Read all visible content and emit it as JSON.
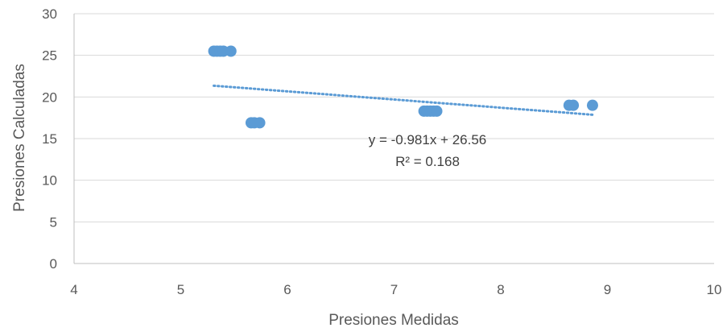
{
  "chart_data": {
    "type": "scatter",
    "xlabel": "Presiones Medidas",
    "ylabel": "Presiones Calculadas",
    "xlim": [
      4,
      10
    ],
    "ylim": [
      0,
      30
    ],
    "xticks": [
      4,
      5,
      6,
      7,
      8,
      9,
      10
    ],
    "yticks": [
      0,
      5,
      10,
      15,
      20,
      25,
      30
    ],
    "grid": "horizontal",
    "series": [
      {
        "color": "#5b9bd5",
        "points": [
          {
            "x": 5.31,
            "y": 25.5
          },
          {
            "x": 5.34,
            "y": 25.5
          },
          {
            "x": 5.37,
            "y": 25.5
          },
          {
            "x": 5.4,
            "y": 25.5
          },
          {
            "x": 5.47,
            "y": 25.5
          },
          {
            "x": 5.66,
            "y": 16.9
          },
          {
            "x": 5.69,
            "y": 16.9
          },
          {
            "x": 5.74,
            "y": 16.9
          },
          {
            "x": 7.28,
            "y": 18.3
          },
          {
            "x": 7.31,
            "y": 18.3
          },
          {
            "x": 7.34,
            "y": 18.3
          },
          {
            "x": 7.37,
            "y": 18.3
          },
          {
            "x": 7.4,
            "y": 18.3
          },
          {
            "x": 8.64,
            "y": 19.0
          },
          {
            "x": 8.68,
            "y": 19.0
          },
          {
            "x": 8.86,
            "y": 19.0
          }
        ]
      }
    ],
    "trendline": {
      "type": "linear",
      "slope": -0.981,
      "intercept": 26.56,
      "x_range": [
        5.31,
        8.86
      ],
      "style": "dotted",
      "color": "#5b9bd5",
      "equation_label": "y = -0.981x + 26.56",
      "r2_label": "R² = 0.168"
    }
  }
}
